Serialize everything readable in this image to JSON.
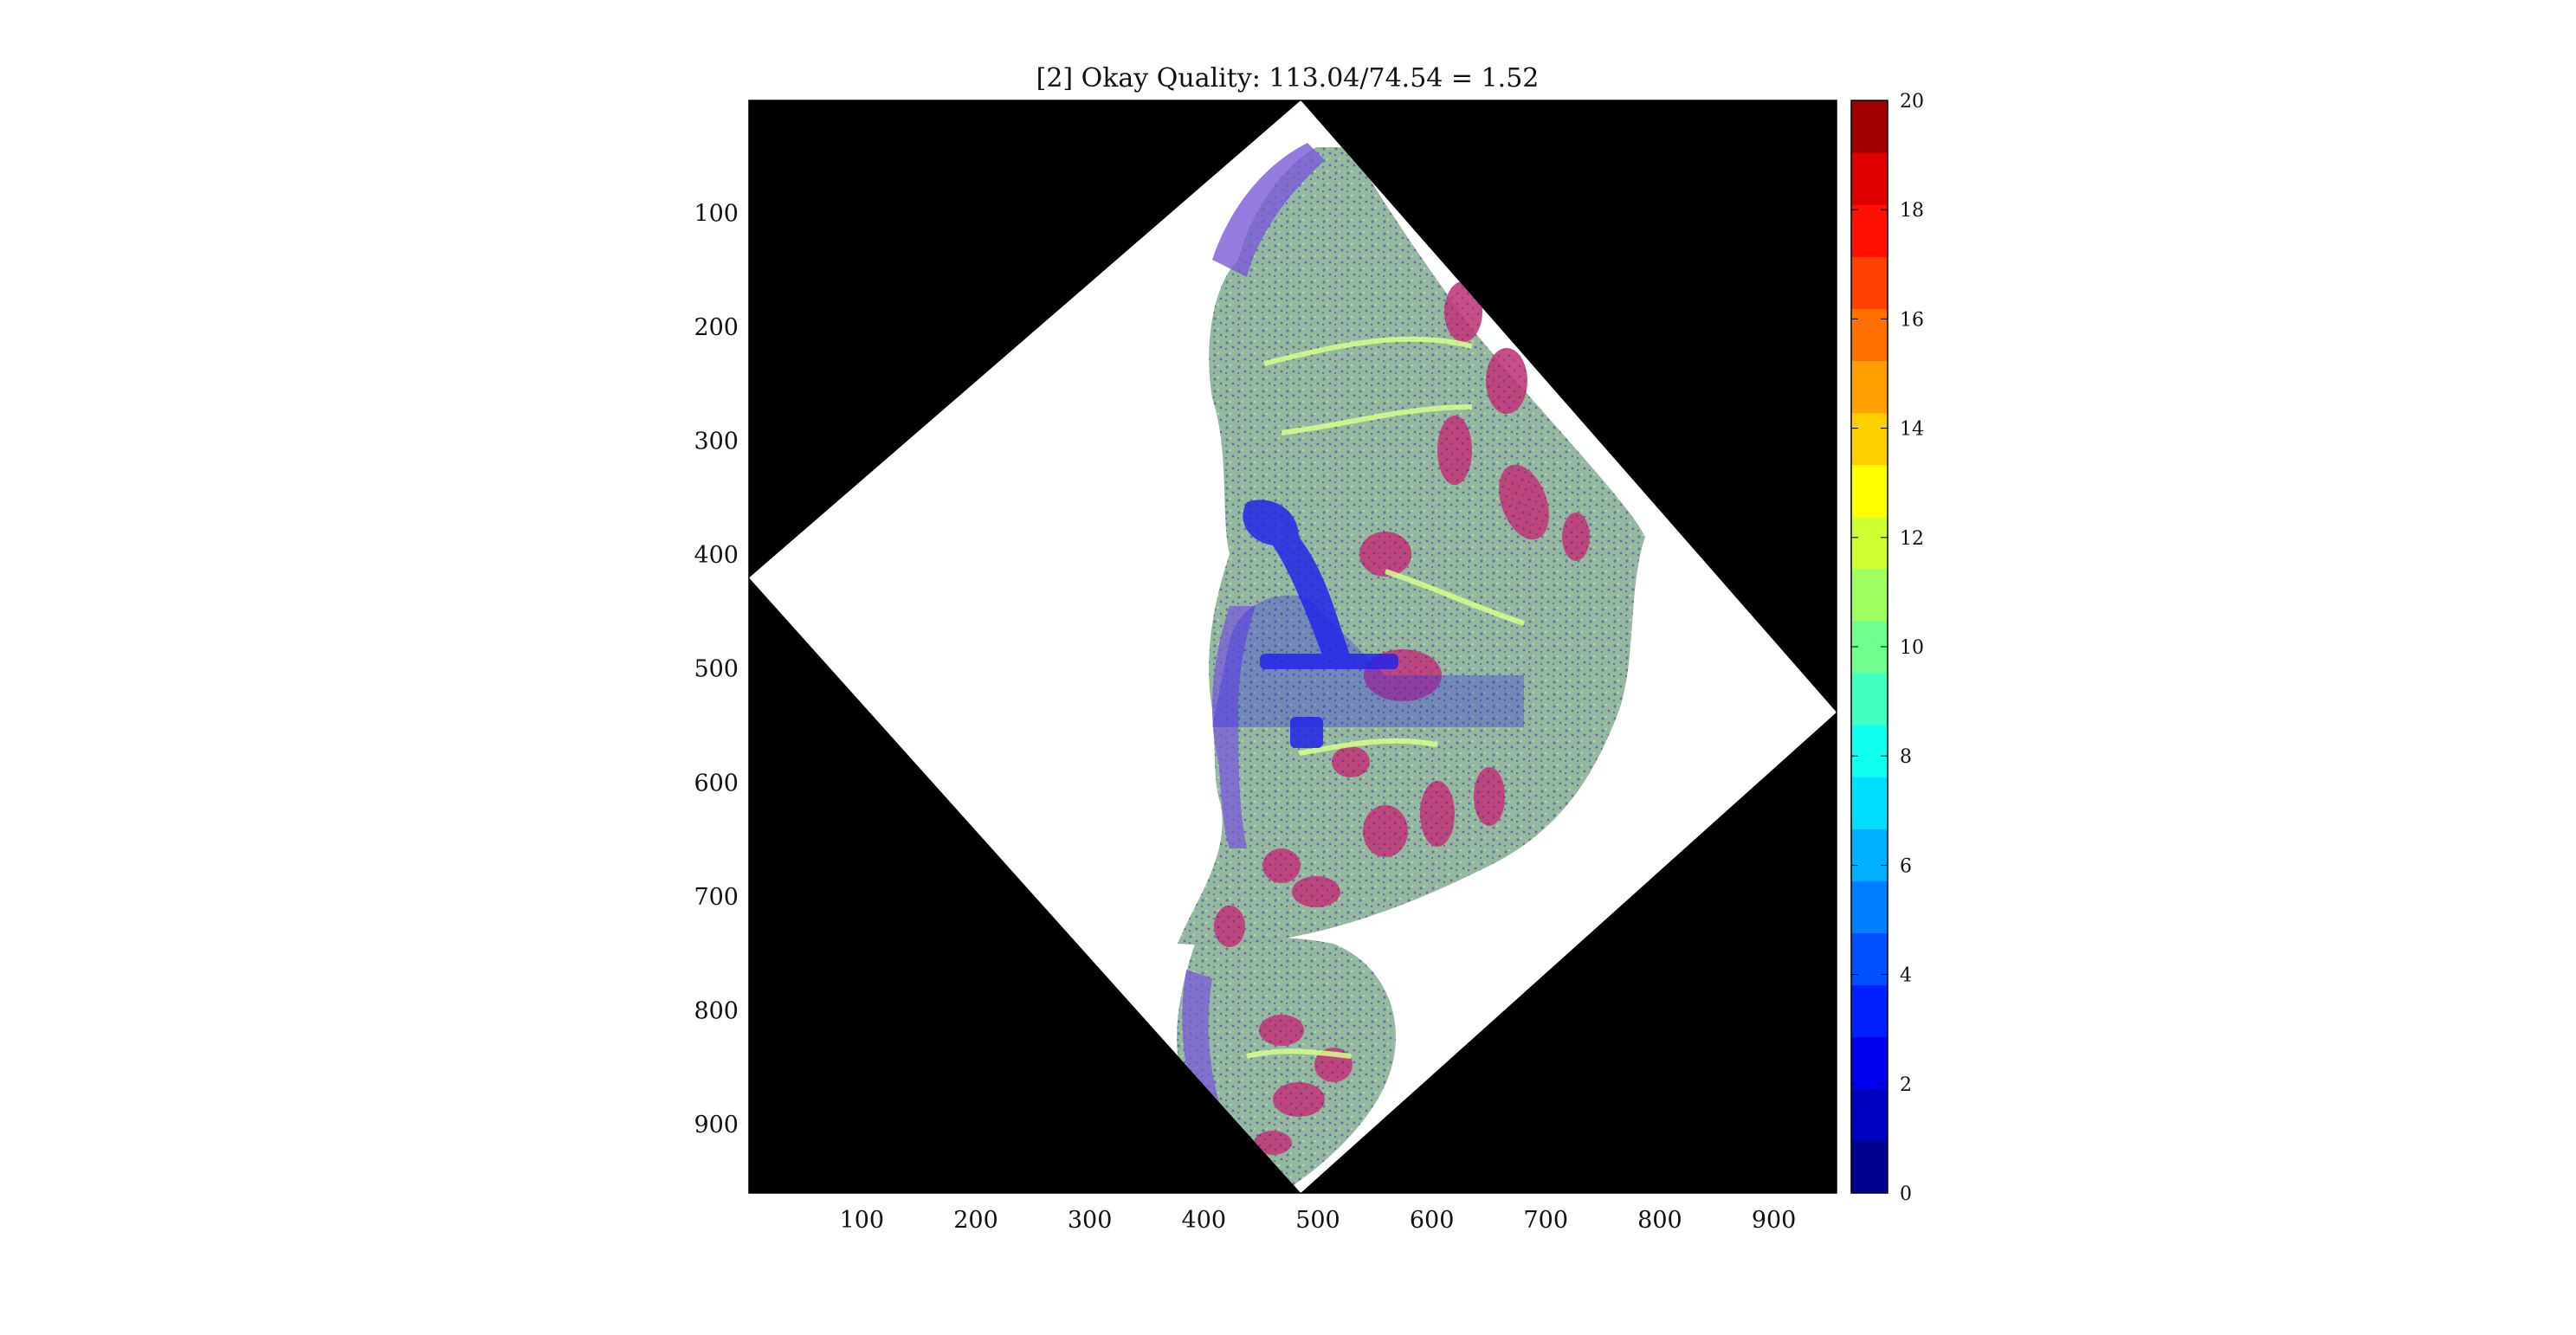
{
  "chart_data": {
    "type": "heatmap",
    "title": "[2] Okay Quality: 113.04/74.54 = 1.52",
    "xlabel": "",
    "ylabel": "",
    "xlim": [
      1,
      955
    ],
    "ylim": [
      1,
      960
    ],
    "y_reversed": true,
    "x_ticks": [
      100,
      200,
      300,
      400,
      500,
      600,
      700,
      800,
      900
    ],
    "y_ticks": [
      100,
      200,
      300,
      400,
      500,
      600,
      700,
      800,
      900
    ],
    "image_region": {
      "shape": "rotated-square",
      "vertices_data": [
        [
          485,
          1
        ],
        [
          955,
          538
        ],
        [
          485,
          960
        ],
        [
          1,
          420
        ]
      ],
      "background_outside": "#000000",
      "background_inside": "#ffffff"
    },
    "colorbar": {
      "colormap": "jet",
      "min": 0,
      "max": 20,
      "levels": 20,
      "ticks": [
        0,
        2,
        4,
        6,
        8,
        10,
        12,
        14,
        16,
        18,
        20
      ],
      "colors": [
        "#00008f",
        "#0000c0",
        "#0000ef",
        "#0020ff",
        "#0050ff",
        "#0080ff",
        "#00b0ff",
        "#00dfff",
        "#10ffef",
        "#40ffbf",
        "#70ff8f",
        "#9fff60",
        "#cfff30",
        "#ffff00",
        "#ffcf00",
        "#ff9f00",
        "#ff7000",
        "#ff4000",
        "#ff1000",
        "#df0000",
        "#a00000"
      ]
    },
    "overlay": {
      "tissue_color": "#8fb59a",
      "low_value_color": "#7a5ad8",
      "high_value_color": "#c23a7a",
      "highlight_color": "#d8ff8a",
      "stroke_color": "#3030e0"
    }
  }
}
